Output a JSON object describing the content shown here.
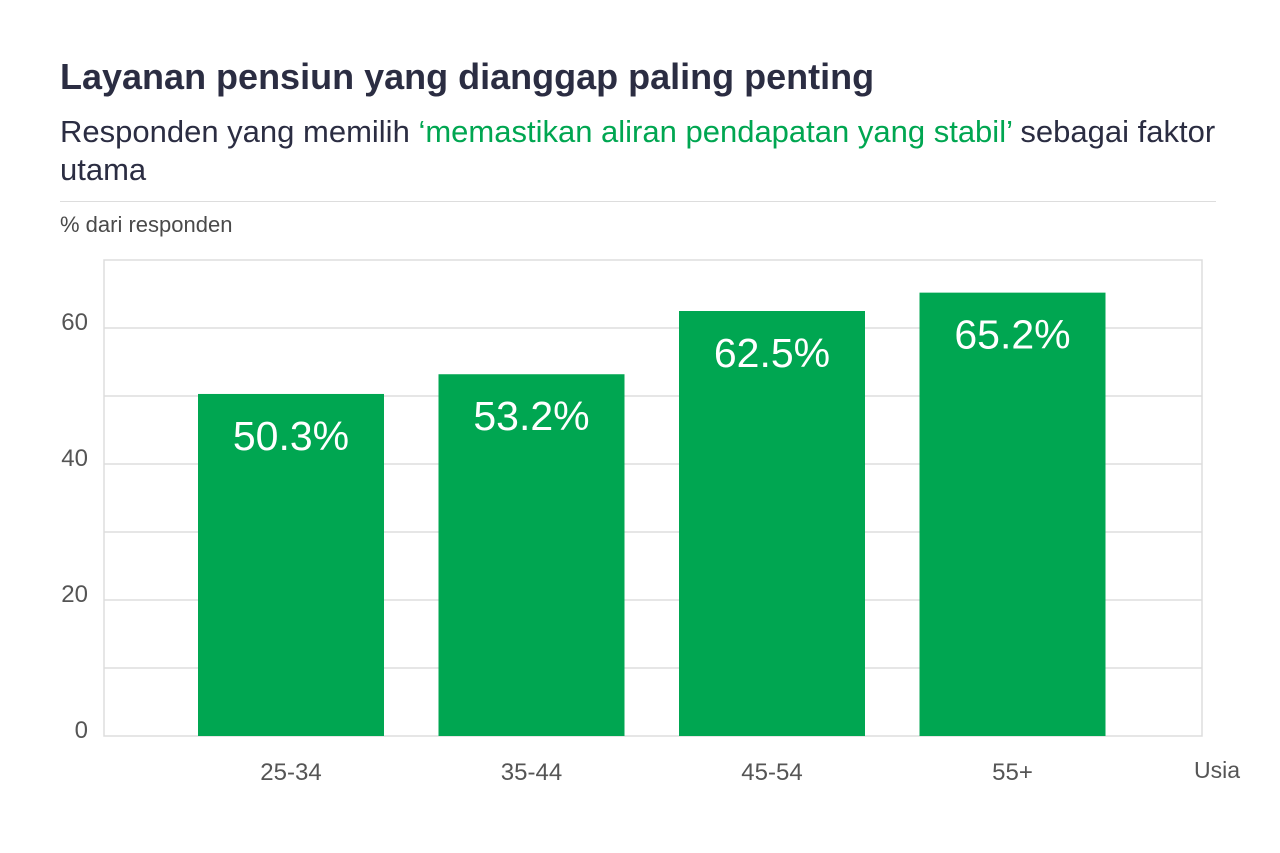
{
  "chart_data": {
    "type": "bar",
    "title": "Layanan pensiun yang dianggap paling penting",
    "subtitle": {
      "before": "Responden yang memilih ",
      "highlight": "‘memastikan aliran pendapatan yang stabil’",
      "after": " sebagai faktor utama"
    },
    "ylabel": "% dari responden",
    "xlabel": "Usia",
    "categories": [
      "25-34",
      "35-44",
      "45-54",
      "55+"
    ],
    "values": [
      50.3,
      53.2,
      62.5,
      65.2
    ],
    "data_labels": [
      "50.3%",
      "53.2%",
      "62.5%",
      "65.2%"
    ],
    "ylim": [
      0,
      70
    ],
    "yticks": [
      0,
      20,
      40,
      60
    ],
    "grid": true,
    "legend": "none"
  },
  "colors": {
    "bar": "#00a651",
    "highlight": "#00a651",
    "grid": "#dddddd",
    "text": "#2b2d42",
    "axis_text": "#555555",
    "label": "#ffffff"
  }
}
